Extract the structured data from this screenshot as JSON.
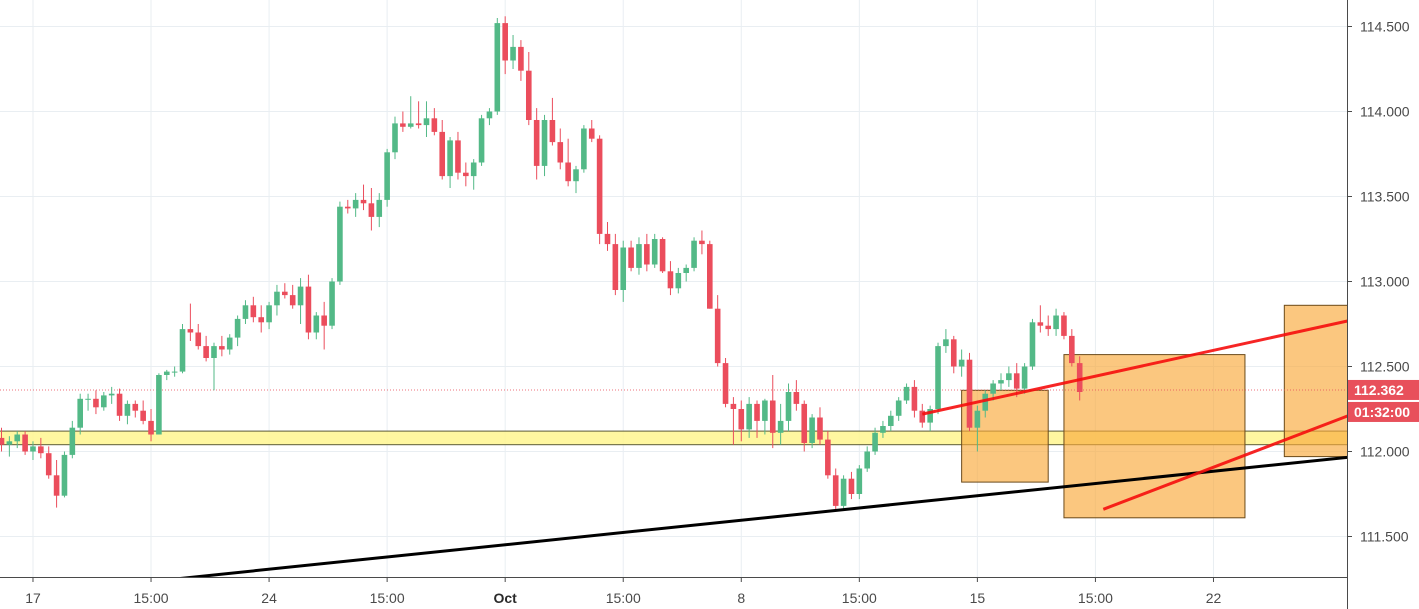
{
  "chart_data": {
    "type": "candlestick",
    "y_axis_ticks": [
      "114.500",
      "114.000",
      "113.500",
      "113.000",
      "112.500",
      "112.000",
      "111.500"
    ],
    "y_axis_values": [
      114.5,
      114.0,
      113.5,
      113.0,
      112.5,
      112.0,
      111.5
    ],
    "x_axis_ticks": [
      {
        "label": "17",
        "bar": 4,
        "bold": false
      },
      {
        "label": "15:00",
        "bar": 19,
        "bold": false
      },
      {
        "label": "24",
        "bar": 34,
        "bold": false
      },
      {
        "label": "15:00",
        "bar": 49,
        "bold": false
      },
      {
        "label": "Oct",
        "bar": 64,
        "bold": true
      },
      {
        "label": "15:00",
        "bar": 79,
        "bold": false
      },
      {
        "label": "8",
        "bar": 94,
        "bold": false
      },
      {
        "label": "15:00",
        "bar": 109,
        "bold": false
      },
      {
        "label": "15",
        "bar": 124,
        "bold": false
      },
      {
        "label": "15:00",
        "bar": 139,
        "bold": false
      },
      {
        "label": "22",
        "bar": 154,
        "bold": false
      }
    ],
    "ylim": [
      111.24,
      114.67
    ],
    "grid": true,
    "current_price": {
      "value": 112.362,
      "label": "112.362",
      "color": "#e8505b"
    },
    "countdown_label": "01:32:00",
    "colors": {
      "up": "#53b987",
      "down": "#eb4d5c",
      "grid": "#e9eef2",
      "axis_text": "#4a4a4a"
    },
    "candles": [
      [
        112.08,
        112.14,
        112.0,
        112.04
      ],
      [
        112.04,
        112.09,
        111.97,
        112.06
      ],
      [
        112.06,
        112.12,
        112.02,
        112.1
      ],
      [
        112.1,
        112.12,
        111.98,
        112.0
      ],
      [
        112.0,
        112.06,
        111.95,
        112.03
      ],
      [
        112.03,
        112.08,
        111.96,
        111.99
      ],
      [
        111.99,
        112.03,
        111.84,
        111.86
      ],
      [
        111.86,
        111.95,
        111.67,
        111.74
      ],
      [
        111.74,
        112.0,
        111.73,
        111.98
      ],
      [
        111.98,
        112.18,
        111.96,
        112.14
      ],
      [
        112.14,
        112.34,
        112.1,
        112.31
      ],
      [
        112.31,
        112.34,
        112.24,
        112.31
      ],
      [
        112.31,
        112.36,
        112.22,
        112.26
      ],
      [
        112.26,
        112.35,
        112.24,
        112.33
      ],
      [
        112.33,
        112.38,
        112.28,
        112.34
      ],
      [
        112.34,
        112.37,
        112.18,
        112.21
      ],
      [
        112.21,
        112.3,
        112.16,
        112.28
      ],
      [
        112.28,
        112.3,
        112.2,
        112.24
      ],
      [
        112.24,
        112.3,
        112.16,
        112.18
      ],
      [
        112.18,
        112.25,
        112.06,
        112.1
      ],
      [
        112.1,
        112.46,
        112.1,
        112.45
      ],
      [
        112.45,
        112.48,
        112.42,
        112.47
      ],
      [
        112.47,
        112.5,
        112.44,
        112.47
      ],
      [
        112.47,
        112.75,
        112.46,
        112.72
      ],
      [
        112.72,
        112.87,
        112.65,
        112.7
      ],
      [
        112.7,
        112.75,
        112.6,
        112.62
      ],
      [
        112.62,
        112.68,
        112.53,
        112.55
      ],
      [
        112.55,
        112.64,
        112.36,
        112.62
      ],
      [
        112.62,
        112.68,
        112.56,
        112.6
      ],
      [
        112.6,
        112.69,
        112.57,
        112.67
      ],
      [
        112.67,
        112.8,
        112.62,
        112.78
      ],
      [
        112.78,
        112.89,
        112.75,
        112.86
      ],
      [
        112.86,
        112.91,
        112.76,
        112.79
      ],
      [
        112.79,
        112.86,
        112.7,
        112.76
      ],
      [
        112.76,
        112.88,
        112.72,
        112.86
      ],
      [
        112.86,
        112.98,
        112.8,
        112.94
      ],
      [
        112.94,
        112.99,
        112.9,
        112.92
      ],
      [
        112.92,
        112.98,
        112.84,
        112.86
      ],
      [
        112.86,
        113.02,
        112.75,
        112.97
      ],
      [
        112.97,
        113.04,
        112.66,
        112.7
      ],
      [
        112.7,
        112.82,
        112.66,
        112.8
      ],
      [
        112.8,
        112.88,
        112.6,
        112.74
      ],
      [
        112.74,
        113.02,
        112.72,
        113.0
      ],
      [
        113.0,
        113.47,
        112.98,
        113.44
      ],
      [
        113.44,
        113.48,
        113.4,
        113.43
      ],
      [
        113.43,
        113.52,
        113.38,
        113.48
      ],
      [
        113.48,
        113.57,
        113.42,
        113.46
      ],
      [
        113.46,
        113.55,
        113.3,
        113.38
      ],
      [
        113.38,
        113.52,
        113.32,
        113.48
      ],
      [
        113.48,
        113.78,
        113.44,
        113.76
      ],
      [
        113.76,
        113.97,
        113.72,
        113.93
      ],
      [
        113.93,
        114.0,
        113.88,
        113.91
      ],
      [
        113.91,
        114.09,
        113.9,
        113.93
      ],
      [
        113.93,
        114.06,
        113.9,
        113.92
      ],
      [
        113.92,
        114.06,
        113.85,
        113.96
      ],
      [
        113.96,
        114.02,
        113.86,
        113.88
      ],
      [
        113.88,
        113.95,
        113.6,
        113.62
      ],
      [
        113.62,
        113.85,
        113.55,
        113.83
      ],
      [
        113.83,
        113.88,
        113.6,
        113.64
      ],
      [
        113.64,
        113.7,
        113.56,
        113.62
      ],
      [
        113.62,
        113.72,
        113.54,
        113.7
      ],
      [
        113.7,
        113.98,
        113.68,
        113.96
      ],
      [
        113.96,
        114.02,
        113.92,
        114.0
      ],
      [
        114.0,
        114.55,
        113.98,
        114.52
      ],
      [
        114.52,
        114.56,
        114.22,
        114.3
      ],
      [
        114.3,
        114.45,
        114.25,
        114.38
      ],
      [
        114.38,
        114.42,
        114.18,
        114.24
      ],
      [
        114.24,
        114.35,
        113.92,
        113.95
      ],
      [
        113.95,
        114.02,
        113.6,
        113.68
      ],
      [
        113.68,
        113.98,
        113.62,
        113.95
      ],
      [
        113.95,
        114.08,
        113.8,
        113.82
      ],
      [
        113.82,
        113.9,
        113.66,
        113.7
      ],
      [
        113.7,
        113.84,
        113.56,
        113.59
      ],
      [
        113.59,
        113.68,
        113.52,
        113.66
      ],
      [
        113.66,
        113.92,
        113.64,
        113.9
      ],
      [
        113.9,
        113.95,
        113.82,
        113.84
      ],
      [
        113.84,
        113.86,
        113.22,
        113.28
      ],
      [
        113.28,
        113.35,
        113.18,
        113.22
      ],
      [
        113.22,
        113.28,
        112.92,
        112.95
      ],
      [
        112.95,
        113.24,
        112.88,
        113.2
      ],
      [
        113.2,
        113.24,
        113.06,
        113.08
      ],
      [
        113.08,
        113.26,
        113.04,
        113.22
      ],
      [
        113.22,
        113.28,
        113.06,
        113.1
      ],
      [
        113.1,
        113.28,
        113.08,
        113.25
      ],
      [
        113.25,
        113.26,
        113.05,
        113.06
      ],
      [
        113.06,
        113.12,
        112.92,
        112.96
      ],
      [
        112.96,
        113.08,
        112.93,
        113.05
      ],
      [
        113.05,
        113.1,
        113.0,
        113.08
      ],
      [
        113.08,
        113.26,
        113.06,
        113.24
      ],
      [
        113.24,
        113.3,
        113.16,
        113.22
      ],
      [
        113.22,
        113.24,
        112.84,
        112.84
      ],
      [
        112.84,
        112.92,
        112.5,
        112.52
      ],
      [
        112.52,
        112.55,
        112.26,
        112.28
      ],
      [
        112.28,
        112.32,
        112.04,
        112.25
      ],
      [
        112.25,
        112.3,
        112.06,
        112.13
      ],
      [
        112.13,
        112.32,
        112.08,
        112.28
      ],
      [
        112.28,
        112.3,
        112.08,
        112.18
      ],
      [
        112.18,
        112.31,
        112.1,
        112.3
      ],
      [
        112.3,
        112.45,
        112.02,
        112.11
      ],
      [
        112.11,
        112.28,
        112.04,
        112.18
      ],
      [
        112.18,
        112.4,
        112.12,
        112.35
      ],
      [
        112.35,
        112.42,
        112.24,
        112.28
      ],
      [
        112.28,
        112.3,
        112.0,
        112.05
      ],
      [
        112.05,
        112.22,
        112.02,
        112.2
      ],
      [
        112.2,
        112.26,
        112.04,
        112.07
      ],
      [
        112.07,
        112.12,
        111.84,
        111.86
      ],
      [
        111.86,
        111.9,
        111.65,
        111.68
      ],
      [
        111.68,
        111.86,
        111.65,
        111.84
      ],
      [
        111.84,
        111.88,
        111.72,
        111.75
      ],
      [
        111.75,
        111.92,
        111.72,
        111.9
      ],
      [
        111.9,
        112.03,
        111.88,
        112.0
      ],
      [
        112.0,
        112.14,
        111.98,
        112.11
      ],
      [
        112.11,
        112.18,
        112.08,
        112.15
      ],
      [
        112.15,
        112.24,
        112.12,
        112.21
      ],
      [
        112.21,
        112.32,
        112.18,
        112.3
      ],
      [
        112.3,
        112.4,
        112.28,
        112.38
      ],
      [
        112.38,
        112.42,
        112.2,
        112.24
      ],
      [
        112.24,
        112.28,
        112.14,
        112.17
      ],
      [
        112.17,
        112.27,
        112.12,
        112.25
      ],
      [
        112.25,
        112.64,
        112.22,
        112.62
      ],
      [
        112.62,
        112.72,
        112.58,
        112.66
      ],
      [
        112.66,
        112.68,
        112.46,
        112.5
      ],
      [
        112.5,
        112.6,
        112.44,
        112.54
      ],
      [
        112.54,
        112.58,
        112.12,
        112.14
      ],
      [
        112.14,
        112.27,
        112.0,
        112.24
      ],
      [
        112.24,
        112.36,
        112.2,
        112.34
      ],
      [
        112.34,
        112.42,
        112.3,
        112.4
      ],
      [
        112.4,
        112.46,
        112.36,
        112.42
      ],
      [
        112.42,
        112.5,
        112.38,
        112.46
      ],
      [
        112.46,
        112.52,
        112.32,
        112.37
      ],
      [
        112.37,
        112.52,
        112.34,
        112.5
      ],
      [
        112.5,
        112.78,
        112.48,
        112.76
      ],
      [
        112.76,
        112.86,
        112.7,
        112.74
      ],
      [
        112.74,
        112.8,
        112.68,
        112.72
      ],
      [
        112.72,
        112.84,
        112.68,
        112.8
      ],
      [
        112.8,
        112.82,
        112.66,
        112.68
      ],
      [
        112.68,
        112.72,
        112.5,
        112.52
      ],
      [
        112.52,
        112.56,
        112.3,
        112.35
      ]
    ],
    "annotations": {
      "support_zone": {
        "y_low": 112.04,
        "y_high": 112.12,
        "x_from": -1,
        "x_to": 196
      },
      "trendline_black": {
        "from": [
          -30,
          111.0
        ],
        "to": [
          199,
          112.1
        ]
      },
      "boxes": [
        {
          "x0": 122,
          "x1": 133,
          "y_low": 111.82,
          "y_high": 112.36
        },
        {
          "x0": 135,
          "x1": 158,
          "y_low": 111.61,
          "y_high": 112.57
        },
        {
          "x0": 163,
          "x1": 181,
          "y_low": 111.97,
          "y_high": 112.86
        }
      ],
      "channel_lines": [
        {
          "from": [
            117,
            112.22
          ],
          "to": [
            190,
            112.96
          ]
        },
        {
          "from": [
            140,
            111.66
          ],
          "to": [
            192,
            112.58
          ]
        }
      ]
    }
  }
}
